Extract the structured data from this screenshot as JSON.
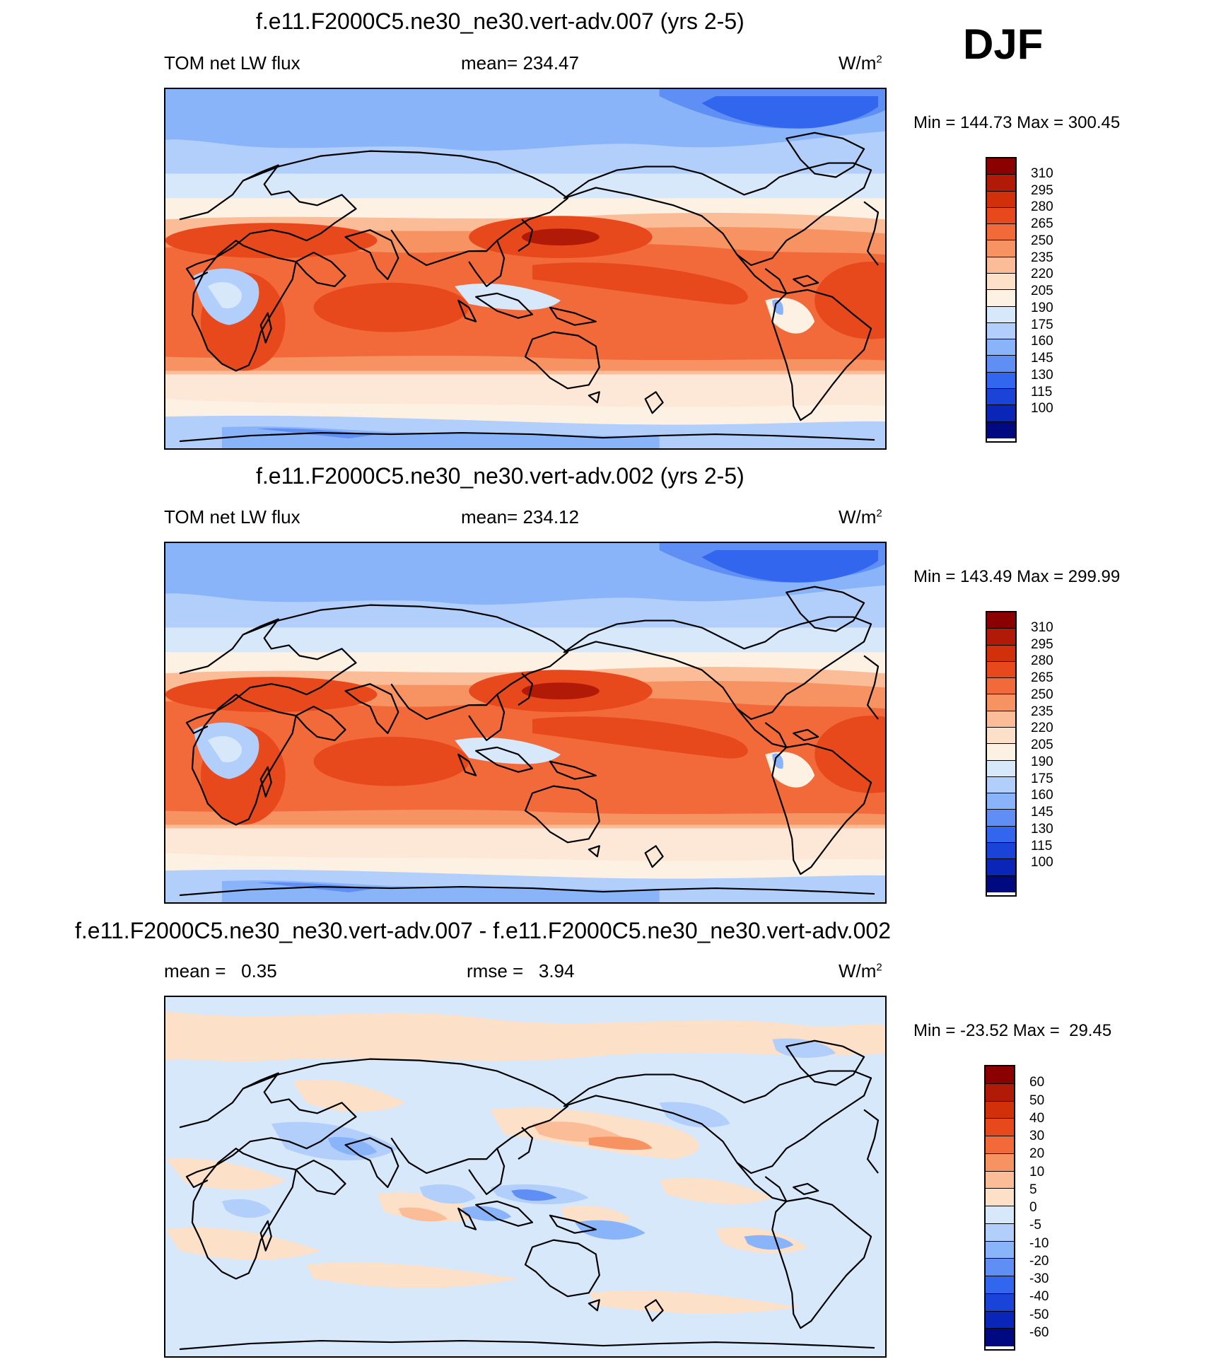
{
  "season_label": "DJF",
  "panels": [
    {
      "id": "top",
      "title": "f.e11.F2000C5.ne30_ne30.vert-adv.007 (yrs 2-5)",
      "left_label": "TOM net LW flux",
      "center_label": "mean= 234.47",
      "units": "W/m",
      "units_sup": "2",
      "minmax": "Min = 144.73 Max = 300.45"
    },
    {
      "id": "middle",
      "title": "f.e11.F2000C5.ne30_ne30.vert-adv.002 (yrs 2-5)",
      "left_label": "TOM net LW flux",
      "center_label": "mean= 234.12",
      "units": "W/m",
      "units_sup": "2",
      "minmax": "Min = 143.49 Max = 299.99"
    },
    {
      "id": "diff",
      "title": "f.e11.F2000C5.ne30_ne30.vert-adv.007 - f.e11.F2000C5.ne30_ne30.vert-adv.002",
      "left_label": "mean =   0.35",
      "center_label": "rmse =   3.94",
      "units": "W/m",
      "units_sup": "2",
      "minmax": "Min = -23.52 Max =  29.45"
    }
  ],
  "colorbars": {
    "flux": {
      "labels": [
        "310",
        "295",
        "280",
        "265",
        "250",
        "235",
        "220",
        "205",
        "190",
        "175",
        "160",
        "145",
        "130",
        "115",
        "100"
      ],
      "colors": [
        "#8b0000",
        "#b01a06",
        "#d2300a",
        "#e8491c",
        "#f26a3a",
        "#f79363",
        "#fbbc98",
        "#fde0c8",
        "#fdf1e3",
        "#d7e8fb",
        "#b2cffb",
        "#8ab4f9",
        "#5f8ff5",
        "#3366ee",
        "#1a44d8",
        "#0a26b8",
        "#000a80"
      ]
    },
    "diff": {
      "labels": [
        "60",
        "50",
        "40",
        "30",
        "20",
        "10",
        "5",
        "0",
        "-5",
        "-10",
        "-20",
        "-30",
        "-40",
        "-50",
        "-60"
      ],
      "colors": [
        "#8b0000",
        "#b01a06",
        "#d2300a",
        "#e8491c",
        "#f26a3a",
        "#f79363",
        "#fbbc98",
        "#fde0c8",
        "#d7e8fb",
        "#b2cffb",
        "#8ab4f9",
        "#5f8ff5",
        "#3366ee",
        "#1a44d8",
        "#0a26b8",
        "#000a80"
      ]
    }
  }
}
